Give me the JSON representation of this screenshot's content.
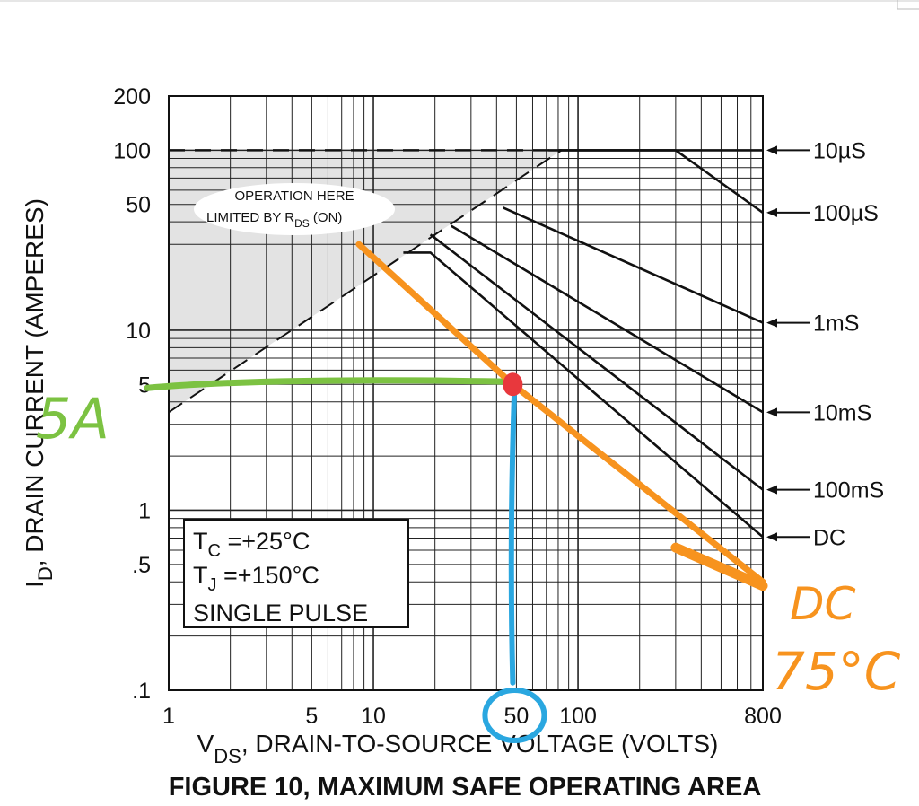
{
  "chart_data": {
    "type": "line",
    "title": "FIGURE 10, MAXIMUM SAFE OPERATING AREA",
    "xlabel": "V",
    "xlabel_sub": "DS",
    "xlabel_rest": ", DRAIN-TO-SOURCE VOLTAGE (VOLTS)",
    "ylabel": "I",
    "ylabel_sub": "D",
    "ylabel_rest": ", DRAIN CURRENT (AMPERES)",
    "x_scale": "log",
    "y_scale": "log",
    "xlim": [
      1,
      800
    ],
    "ylim": [
      0.1,
      200
    ],
    "grid": true,
    "x_ticks": [
      {
        "value": 1,
        "label": "1"
      },
      {
        "value": 5,
        "label": "5"
      },
      {
        "value": 10,
        "label": "10"
      },
      {
        "value": 50,
        "label": "50"
      },
      {
        "value": 100,
        "label": "100"
      },
      {
        "value": 800,
        "label": "800"
      }
    ],
    "y_ticks": [
      {
        "value": 200,
        "label": "200"
      },
      {
        "value": 100,
        "label": "100"
      },
      {
        "value": 50,
        "label": "50"
      },
      {
        "value": 10,
        "label": "10"
      },
      {
        "value": 5,
        "label": "5"
      },
      {
        "value": 1,
        "label": "1"
      },
      {
        "value": 0.5,
        "label": ".5"
      },
      {
        "value": 0.1,
        "label": ".1"
      }
    ],
    "series": [
      {
        "name": "10µS",
        "x": [
          80,
          800
        ],
        "y": [
          100,
          100
        ]
      },
      {
        "name": "100µS",
        "x": [
          72,
          300,
          800
        ],
        "y": [
          100,
          100,
          45
        ]
      },
      {
        "name": "1mS",
        "x": [
          43,
          800
        ],
        "y": [
          48,
          11
        ]
      },
      {
        "name": "10mS",
        "x": [
          24,
          800
        ],
        "y": [
          38,
          3.5
        ]
      },
      {
        "name": "100mS",
        "x": [
          19,
          800
        ],
        "y": [
          34,
          1.3
        ]
      },
      {
        "name": "DC",
        "x": [
          14,
          19,
          800
        ],
        "y": [
          27,
          27,
          0.71
        ]
      }
    ],
    "rds_limit": {
      "x": [
        1,
        83
      ],
      "y": [
        3.5,
        100
      ]
    },
    "current_limit": {
      "x": [
        1,
        83
      ],
      "y": [
        100,
        100
      ]
    },
    "annotation_region": "OPERATION HERE",
    "annotation_limit": "LIMITED BY R",
    "annotation_limit_sub": "DS",
    "annotation_limit_rest": " (ON)",
    "conditions": [
      {
        "main": "T",
        "sub": "C",
        "rest": " =+25°C"
      },
      {
        "main": "T",
        "sub": "J",
        "rest": " =+150°C"
      },
      {
        "main": "SINGLE PULSE",
        "sub": "",
        "rest": ""
      }
    ],
    "curve_labels": [
      {
        "text": "10µS",
        "y": 100
      },
      {
        "text": "100µS",
        "y": 45
      },
      {
        "text": "1mS",
        "y": 11
      },
      {
        "text": "10mS",
        "y": 3.5
      },
      {
        "text": "100mS",
        "y": 1.3
      },
      {
        "text": "DC",
        "y": 0.71
      }
    ],
    "handwritten": {
      "derated_line": {
        "x": [
          8.5,
          48,
          800
        ],
        "y": [
          30,
          5,
          0.4
        ],
        "color": "#f7931e"
      },
      "current_marker": {
        "label": "5A",
        "y": 5,
        "x_end": 48,
        "color": "#7cc242"
      },
      "voltage_marker": {
        "label": "50",
        "x": 48,
        "y_start": 5,
        "color": "#2aa7e0"
      },
      "intersection": {
        "x": 48,
        "y": 5,
        "color": "#e8383d"
      },
      "derated_label_1": "DC",
      "derated_label_2": "75°C"
    }
  }
}
